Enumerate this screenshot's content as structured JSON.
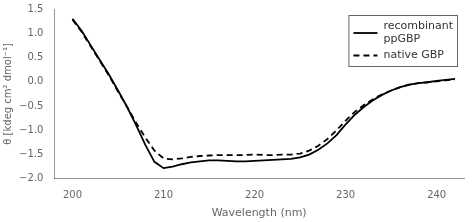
{
  "chart_data": {
    "type": "line",
    "xlabel": "Wavelength (nm)",
    "ylabel": "θ [kdeg cm² dmol⁻¹]",
    "x": [
      200,
      201,
      202,
      203,
      204,
      205,
      206,
      207,
      208,
      209,
      210,
      211,
      212,
      213,
      214,
      215,
      216,
      217,
      218,
      219,
      220,
      221,
      222,
      223,
      224,
      225,
      226,
      227,
      228,
      229,
      230,
      231,
      232,
      233,
      234,
      235,
      236,
      237,
      238,
      239,
      240,
      241,
      242
    ],
    "series": [
      {
        "name": "recombinant\nppGBP",
        "color": "#000000",
        "line_style": "solid",
        "values": [
          1.3,
          1.05,
          0.75,
          0.45,
          0.15,
          -0.18,
          -0.52,
          -0.9,
          -1.3,
          -1.65,
          -1.78,
          -1.75,
          -1.7,
          -1.66,
          -1.64,
          -1.62,
          -1.62,
          -1.63,
          -1.64,
          -1.64,
          -1.63,
          -1.62,
          -1.61,
          -1.6,
          -1.59,
          -1.56,
          -1.5,
          -1.4,
          -1.27,
          -1.1,
          -0.88,
          -0.68,
          -0.52,
          -0.38,
          -0.27,
          -0.18,
          -0.11,
          -0.06,
          -0.03,
          -0.01,
          0.02,
          0.04,
          0.06
        ]
      },
      {
        "name": "native GBP",
        "color": "#000000",
        "line_style": "dashed",
        "values": [
          1.28,
          1.03,
          0.73,
          0.43,
          0.13,
          -0.2,
          -0.52,
          -0.85,
          -1.15,
          -1.42,
          -1.58,
          -1.6,
          -1.58,
          -1.55,
          -1.53,
          -1.52,
          -1.51,
          -1.51,
          -1.51,
          -1.51,
          -1.5,
          -1.51,
          -1.51,
          -1.5,
          -1.5,
          -1.48,
          -1.42,
          -1.32,
          -1.18,
          -1.0,
          -0.8,
          -0.62,
          -0.48,
          -0.36,
          -0.26,
          -0.18,
          -0.11,
          -0.06,
          -0.03,
          -0.01,
          0.01,
          0.03,
          0.05
        ]
      }
    ],
    "xlim": [
      198,
      243
    ],
    "xticks": [
      200,
      210,
      220,
      230,
      240
    ],
    "ylim": [
      -2.0,
      1.5
    ],
    "yticks": [
      {
        "value": -2.0,
        "label": "−2.0"
      },
      {
        "value": -1.5,
        "label": "−1.5"
      },
      {
        "value": -1.0,
        "label": "−1.0"
      },
      {
        "value": -0.5,
        "label": "−0.5"
      },
      {
        "value": 0.0,
        "label": "0.0"
      },
      {
        "value": 0.5,
        "label": "0.5"
      },
      {
        "value": 1.0,
        "label": "1.0"
      },
      {
        "value": 1.5,
        "label": "1.5"
      }
    ],
    "grid": false,
    "legend": "upper right"
  }
}
